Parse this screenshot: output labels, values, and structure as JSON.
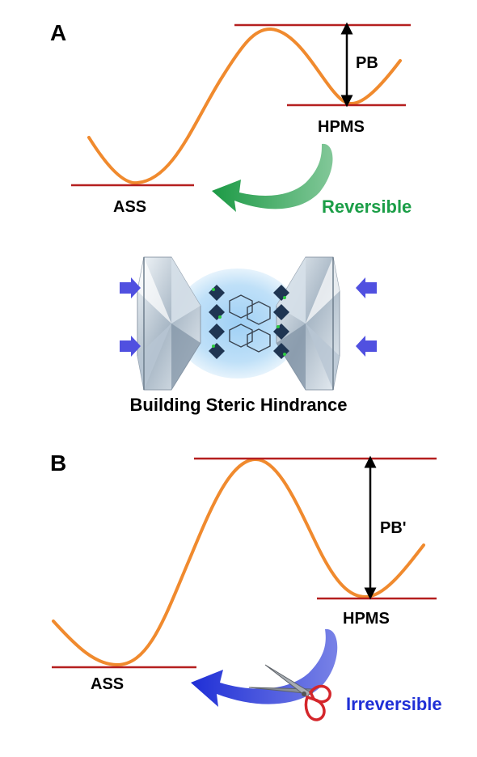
{
  "panel_a": {
    "letter": "A",
    "barrier_label": "PB",
    "metastable_label": "HPMS",
    "ground_label": "ASS",
    "transition_label": "Reversible"
  },
  "center": {
    "caption": "Building Steric Hindrance"
  },
  "panel_b": {
    "letter": "B",
    "barrier_label": "PB'",
    "metastable_label": "HPMS",
    "ground_label": "ASS",
    "transition_label": "Irreversible"
  },
  "colors": {
    "curve": "#f08a2e",
    "level_line": "#b51f1f",
    "reversible_arrow": "#1b9e47",
    "irreversible_arrow": "#1f2fd6",
    "press_arrow": "#5050e0",
    "scissors": "#d4262b"
  }
}
